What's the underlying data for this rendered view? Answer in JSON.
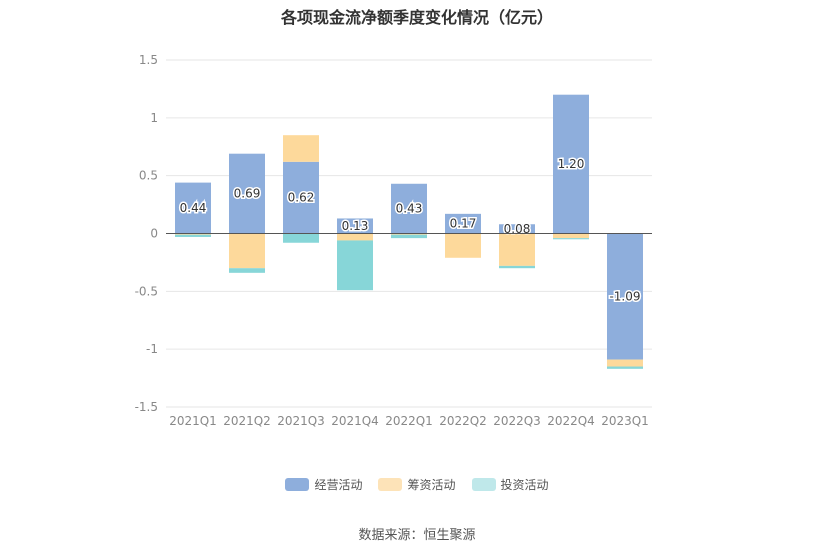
{
  "chart_data": {
    "type": "bar",
    "stacked": true,
    "title": "各项现金流净额季度变化情况（亿元）",
    "categories": [
      "2021Q1",
      "2021Q2",
      "2021Q3",
      "2021Q4",
      "2022Q1",
      "2022Q2",
      "2022Q3",
      "2022Q4",
      "2023Q1"
    ],
    "series": [
      {
        "name": "经营活动",
        "color": "#8eaedc",
        "values": [
          0.44,
          0.69,
          0.62,
          0.13,
          0.43,
          0.17,
          0.08,
          1.2,
          -1.09
        ]
      },
      {
        "name": "筹资活动",
        "color": "#fdd99b",
        "values": [
          -0.01,
          -0.3,
          0.23,
          -0.06,
          -0.01,
          -0.21,
          -0.28,
          -0.04,
          -0.06
        ]
      },
      {
        "name": "投资活动",
        "color": "#87d6d8",
        "values": [
          -0.02,
          -0.04,
          -0.08,
          -0.43,
          -0.03,
          0.0,
          -0.02,
          -0.01,
          -0.02
        ]
      }
    ],
    "data_labels": [
      "0.44",
      "0.69",
      "0.62",
      "0.13",
      "0.43",
      "0.17",
      "0.08",
      "1.20",
      "-1.09"
    ],
    "yticks": [
      "1.5",
      "1",
      "0.5",
      "0",
      "-0.5",
      "-1",
      "-1.5"
    ],
    "ylim": [
      -1.5,
      1.5
    ],
    "grid": true,
    "legend_position": "bottom"
  },
  "legend": [
    {
      "label": "经营活动",
      "color": "#8eaedc"
    },
    {
      "label": "筹资活动",
      "color": "#fde3b8"
    },
    {
      "label": "投资活动",
      "color": "#bfe8ea"
    }
  ],
  "source": "数据来源：恒生聚源"
}
